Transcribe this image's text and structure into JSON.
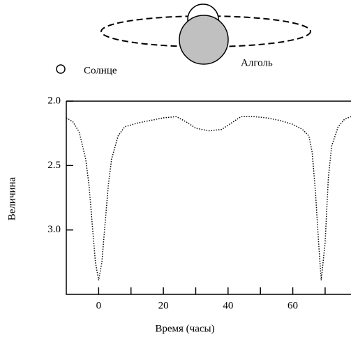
{
  "chart_data": {
    "type": "line",
    "xlabel": "Время (часы)",
    "ylabel": "Величина",
    "annotations": [
      "Солнце",
      "Алголь"
    ],
    "x": [
      -10,
      -8,
      -6,
      -4,
      -3,
      -2,
      -1,
      0,
      1,
      2,
      3,
      4,
      6,
      8,
      12,
      16,
      20,
      24,
      27,
      30,
      34,
      38,
      41,
      44,
      48,
      52,
      56,
      60,
      63,
      65,
      66,
      67,
      68,
      68.8,
      70,
      71,
      72,
      74,
      76,
      78
    ],
    "series": [
      {
        "color": "#000000",
        "values": [
          2.13,
          2.16,
          2.24,
          2.45,
          2.65,
          2.95,
          3.25,
          3.39,
          3.25,
          2.95,
          2.65,
          2.45,
          2.27,
          2.2,
          2.17,
          2.15,
          2.13,
          2.12,
          2.16,
          2.21,
          2.23,
          2.22,
          2.17,
          2.12,
          2.12,
          2.13,
          2.15,
          2.18,
          2.22,
          2.27,
          2.4,
          2.7,
          3.1,
          3.39,
          3.1,
          2.6,
          2.35,
          2.2,
          2.14,
          2.12
        ]
      }
    ],
    "xlim": [
      -10,
      78
    ],
    "xticks": [
      0,
      20,
      40,
      60
    ],
    "xminorticks": [
      10,
      30,
      50,
      70
    ],
    "ylim": [
      2.0,
      3.5
    ],
    "yinverted": true,
    "yticks": [
      {
        "value": 2.0,
        "label": "2.0"
      },
      {
        "value": 2.5,
        "label": "2.5"
      },
      {
        "value": 3.0,
        "label": "3.0"
      }
    ]
  }
}
